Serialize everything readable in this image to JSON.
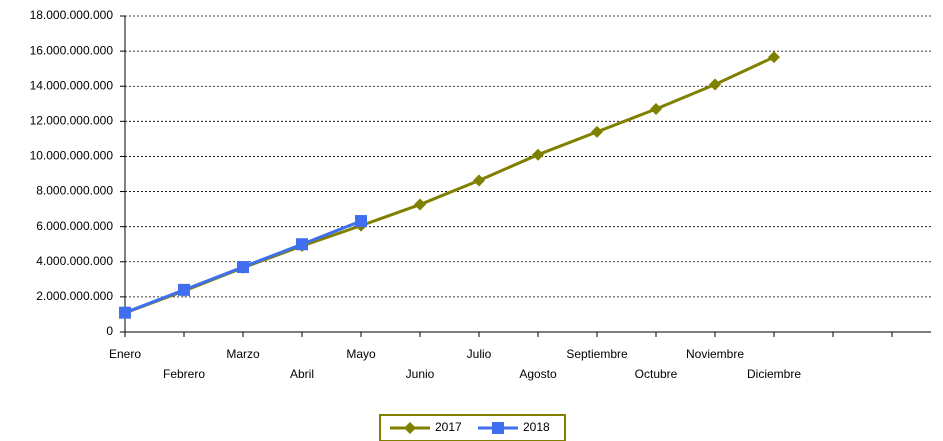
{
  "chart_data": {
    "type": "line",
    "categories": [
      "Enero",
      "Febrero",
      "Marzo",
      "Abril",
      "Mayo",
      "Junio",
      "Julio",
      "Agosto",
      "Septiembre",
      "Octubre",
      "Noviembre",
      "Diciembre",
      null,
      null
    ],
    "series": [
      {
        "name": "2017",
        "color": "#808000",
        "marker": "diamond",
        "values": [
          1090000000,
          2340000000,
          3660000000,
          4900000000,
          6060000000,
          7260000000,
          8630000000,
          10100000000,
          11400000000,
          12700000000,
          14100000000,
          15660000000,
          null,
          null
        ]
      },
      {
        "name": "2018",
        "color": "#3f6fef",
        "marker": "square",
        "values": [
          1100000000,
          2400000000,
          3700000000,
          5000000000,
          6320000000,
          null,
          null,
          null,
          null,
          null,
          null,
          null,
          null,
          null
        ]
      }
    ],
    "ylim": [
      0,
      18000000000
    ],
    "yticks": [
      0,
      {
        "value": 2000000000,
        "label": "2.000.000.000"
      },
      {
        "value": 4000000000,
        "label": "4.000.000.000"
      },
      {
        "value": 6000000000,
        "label": "6.000.000.000"
      },
      {
        "value": 8000000000,
        "label": "8.000.000.000"
      },
      {
        "value": 10000000000,
        "label": "10.000.000.000"
      },
      {
        "value": 12000000000,
        "label": "12.000.000.000"
      },
      {
        "value": 14000000000,
        "label": "14.000.000.000"
      },
      {
        "value": 16000000000,
        "label": "16.000.000.000"
      },
      {
        "value": 18000000000,
        "label": "18.000.000.000"
      }
    ],
    "grid": true,
    "legend": "bottom"
  }
}
